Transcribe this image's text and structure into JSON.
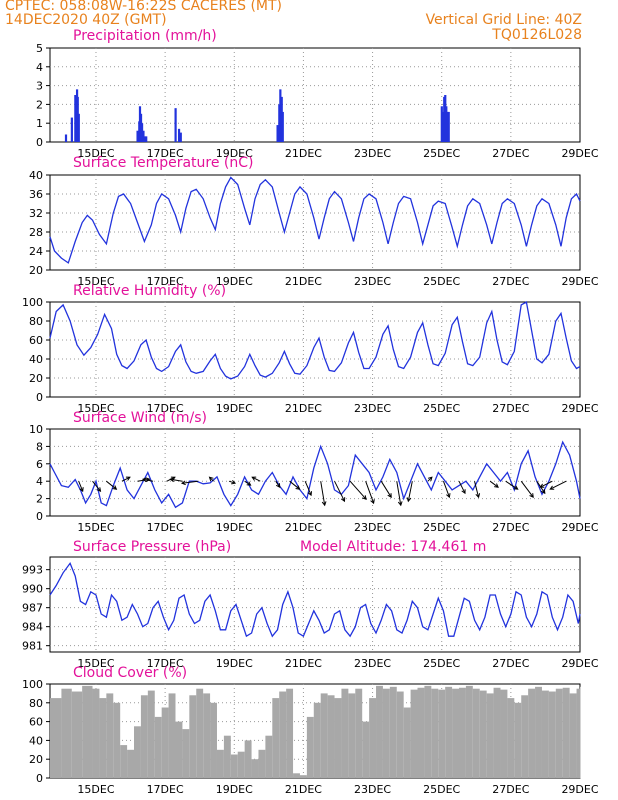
{
  "header": {
    "line1": "CPTEC:    058:08W-16:22S    CACERES (MT)",
    "line2": "14DEC2020 40Z (GMT)",
    "grid_note": "Vertical Grid Line: 40Z",
    "code": "TQ0126L028"
  },
  "x_ticks": [
    "15DEC",
    "17DEC",
    "19DEC",
    "21DEC",
    "23DEC",
    "25DEC",
    "27DEC",
    "29DEC"
  ],
  "model_altitude": "Model Altitude:  174.461  m",
  "colors": {
    "line": "#2233dd",
    "bars": "#2233dd",
    "cloud": "#a8a8a8",
    "title": "#e3129a",
    "header": "#e8821e"
  },
  "chart_data": [
    {
      "id": "precip",
      "type": "bar",
      "title": "Precipitation  (mm/h)",
      "ylim": [
        0,
        5
      ],
      "yticks": [
        "0",
        "1",
        "2",
        "3",
        "4",
        "5"
      ],
      "x": [
        14.13,
        14.3,
        14.4,
        14.45,
        14.47,
        14.5,
        16.2,
        16.25,
        16.27,
        16.3,
        16.33,
        16.37,
        16.4,
        16.45,
        17.3,
        17.4,
        17.45,
        20.25,
        20.3,
        20.33,
        20.37,
        20.4,
        25.0,
        25.03,
        25.07,
        25.1,
        25.13,
        25.17,
        25.2
      ],
      "values": [
        0.4,
        1.3,
        2.5,
        2.8,
        2.4,
        1.5,
        0.6,
        1.1,
        1.9,
        1.5,
        1.0,
        0.6,
        0.3,
        0.3,
        1.8,
        0.7,
        0.5,
        0.9,
        2.0,
        2.8,
        2.4,
        1.6,
        1.9,
        1.6,
        2.4,
        2.5,
        1.9,
        1.6,
        1.6
      ]
    },
    {
      "id": "temp",
      "type": "line",
      "title": "Surface Temperature  (nC)",
      "ylim": [
        20,
        40
      ],
      "yticks": [
        "20",
        "24",
        "28",
        "32",
        "36",
        "40"
      ],
      "x": [
        13.67,
        13.8,
        14.0,
        14.2,
        14.4,
        14.6,
        14.75,
        14.9,
        15.1,
        15.3,
        15.5,
        15.65,
        15.8,
        16.0,
        16.2,
        16.4,
        16.6,
        16.75,
        16.9,
        17.1,
        17.3,
        17.45,
        17.6,
        17.75,
        17.9,
        18.1,
        18.3,
        18.45,
        18.6,
        18.75,
        18.9,
        19.1,
        19.3,
        19.45,
        19.6,
        19.75,
        19.9,
        20.1,
        20.3,
        20.45,
        20.6,
        20.75,
        20.9,
        21.1,
        21.3,
        21.45,
        21.6,
        21.75,
        21.9,
        22.1,
        22.3,
        22.45,
        22.6,
        22.75,
        22.9,
        23.1,
        23.3,
        23.45,
        23.6,
        23.75,
        23.9,
        24.1,
        24.3,
        24.45,
        24.6,
        24.75,
        24.9,
        25.1,
        25.3,
        25.45,
        25.6,
        25.75,
        25.9,
        26.1,
        26.3,
        26.45,
        26.6,
        26.75,
        26.9,
        27.1,
        27.3,
        27.45,
        27.6,
        27.75,
        27.9,
        28.1,
        28.3,
        28.45,
        28.6,
        28.75,
        28.9,
        29.0
      ],
      "values": [
        27,
        24,
        22.5,
        21.5,
        26,
        30,
        31.5,
        30.5,
        27.5,
        25.5,
        32,
        35.5,
        36,
        34,
        30,
        26,
        29.5,
        34,
        36,
        35,
        31.5,
        28,
        33,
        36.5,
        37,
        35,
        31,
        28.5,
        34,
        37.5,
        39.5,
        38,
        33,
        29.5,
        35,
        38,
        39,
        37.5,
        32,
        28,
        32,
        36,
        37.5,
        36,
        31,
        26.5,
        31,
        35,
        36.5,
        35,
        30,
        26,
        31,
        35,
        36,
        35,
        30,
        25.5,
        30,
        34,
        35.5,
        35,
        30,
        25.5,
        29.5,
        33.5,
        34.5,
        34,
        29,
        25,
        29.5,
        33.5,
        35,
        34,
        29.5,
        25.5,
        30,
        34,
        35,
        34,
        29.5,
        25,
        29.5,
        33.5,
        35,
        34,
        29.5,
        25,
        31,
        35,
        36,
        34.5
      ]
    },
    {
      "id": "rh",
      "type": "line",
      "title": "Relative Humidity  (%)",
      "ylim": [
        0,
        100
      ],
      "yticks": [
        "0",
        "20",
        "40",
        "60",
        "80",
        "100"
      ],
      "x": [
        13.67,
        13.85,
        14.05,
        14.25,
        14.45,
        14.65,
        14.85,
        15.05,
        15.25,
        15.45,
        15.6,
        15.75,
        15.9,
        16.1,
        16.3,
        16.45,
        16.6,
        16.75,
        16.9,
        17.1,
        17.3,
        17.45,
        17.6,
        17.75,
        17.9,
        18.1,
        18.3,
        18.45,
        18.6,
        18.75,
        18.9,
        19.1,
        19.3,
        19.45,
        19.6,
        19.75,
        19.9,
        20.1,
        20.3,
        20.45,
        20.6,
        20.75,
        20.9,
        21.1,
        21.3,
        21.45,
        21.6,
        21.75,
        21.9,
        22.1,
        22.3,
        22.45,
        22.6,
        22.75,
        22.9,
        23.1,
        23.3,
        23.45,
        23.6,
        23.75,
        23.9,
        24.1,
        24.3,
        24.45,
        24.6,
        24.75,
        24.9,
        25.1,
        25.3,
        25.45,
        25.6,
        25.75,
        25.9,
        26.1,
        26.3,
        26.45,
        26.6,
        26.75,
        26.9,
        27.1,
        27.3,
        27.45,
        27.6,
        27.75,
        27.9,
        28.1,
        28.3,
        28.45,
        28.6,
        28.75,
        28.9,
        29.0
      ],
      "values": [
        62,
        90,
        97,
        80,
        55,
        44,
        52,
        66,
        87,
        72,
        45,
        33,
        30,
        38,
        55,
        60,
        42,
        30,
        27,
        32,
        48,
        55,
        37,
        27,
        25,
        27,
        38,
        45,
        30,
        22,
        19,
        22,
        32,
        45,
        33,
        23,
        21,
        25,
        36,
        48,
        35,
        25,
        24,
        33,
        52,
        62,
        42,
        28,
        27,
        36,
        57,
        68,
        47,
        30,
        30,
        42,
        66,
        75,
        50,
        32,
        30,
        42,
        68,
        78,
        55,
        35,
        33,
        46,
        76,
        84,
        58,
        35,
        33,
        42,
        78,
        90,
        60,
        37,
        34,
        48,
        97,
        100,
        70,
        40,
        36,
        45,
        80,
        88,
        62,
        38,
        30,
        32
      ]
    },
    {
      "id": "wind",
      "type": "line",
      "title": "Surface Wind  (m/s)",
      "ylim": [
        0,
        10
      ],
      "yticks": [
        "0",
        "2",
        "4",
        "6",
        "8",
        "10"
      ],
      "x": [
        13.67,
        13.8,
        14.0,
        14.2,
        14.4,
        14.55,
        14.7,
        14.85,
        15.0,
        15.15,
        15.3,
        15.5,
        15.7,
        15.9,
        16.1,
        16.3,
        16.5,
        16.7,
        16.9,
        17.1,
        17.3,
        17.5,
        17.7,
        17.9,
        18.1,
        18.3,
        18.5,
        18.7,
        18.9,
        19.1,
        19.3,
        19.5,
        19.7,
        19.9,
        20.1,
        20.3,
        20.5,
        20.7,
        20.9,
        21.1,
        21.3,
        21.5,
        21.7,
        21.9,
        22.1,
        22.3,
        22.5,
        22.7,
        22.9,
        23.1,
        23.3,
        23.5,
        23.7,
        23.9,
        24.1,
        24.3,
        24.5,
        24.7,
        24.9,
        25.1,
        25.3,
        25.5,
        25.7,
        25.9,
        26.1,
        26.3,
        26.5,
        26.7,
        26.9,
        27.1,
        27.3,
        27.5,
        27.7,
        27.9,
        28.1,
        28.3,
        28.5,
        28.7,
        28.9,
        29.0
      ],
      "values": [
        6,
        5,
        3.5,
        3.3,
        4.2,
        3,
        1.5,
        2.5,
        4,
        1.5,
        1.2,
        3.5,
        5.5,
        3,
        2,
        3.5,
        5,
        3,
        1.5,
        2.5,
        1,
        1.5,
        4,
        4,
        3.7,
        3.8,
        4.5,
        2.5,
        1.2,
        2.5,
        4.5,
        3,
        2.5,
        4,
        5,
        3.5,
        2.5,
        4.5,
        3,
        2,
        5.5,
        8,
        6,
        3,
        2.5,
        3.5,
        7,
        6,
        5,
        3,
        4.5,
        6.5,
        5,
        2,
        4,
        6,
        4.5,
        3,
        5,
        4,
        3,
        3.5,
        4,
        3,
        4.5,
        6,
        5,
        4,
        5,
        3,
        6,
        7.5,
        4.5,
        2.5,
        4,
        6,
        8.5,
        7,
        4,
        2
      ]
    },
    {
      "id": "pressure",
      "type": "line",
      "title": "Surface Pressure  (hPa)",
      "ylim": [
        980,
        995
      ],
      "yticks": [
        "981",
        "984",
        "987",
        "990",
        "993"
      ],
      "x": [
        13.67,
        13.85,
        14.05,
        14.25,
        14.4,
        14.55,
        14.7,
        14.85,
        15.0,
        15.15,
        15.3,
        15.45,
        15.6,
        15.75,
        15.9,
        16.05,
        16.2,
        16.35,
        16.5,
        16.65,
        16.8,
        16.95,
        17.1,
        17.25,
        17.4,
        17.55,
        17.7,
        17.85,
        18.0,
        18.15,
        18.3,
        18.45,
        18.6,
        18.75,
        18.9,
        19.05,
        19.2,
        19.35,
        19.5,
        19.65,
        19.8,
        19.95,
        20.1,
        20.25,
        20.4,
        20.55,
        20.7,
        20.85,
        21.0,
        21.15,
        21.3,
        21.45,
        21.6,
        21.75,
        21.9,
        22.05,
        22.2,
        22.35,
        22.5,
        22.65,
        22.8,
        22.95,
        23.1,
        23.25,
        23.4,
        23.55,
        23.7,
        23.85,
        24.0,
        24.15,
        24.3,
        24.45,
        24.6,
        24.75,
        24.9,
        25.05,
        25.2,
        25.35,
        25.5,
        25.65,
        25.8,
        25.95,
        26.1,
        26.25,
        26.4,
        26.55,
        26.7,
        26.85,
        27.0,
        27.15,
        27.3,
        27.45,
        27.6,
        27.75,
        27.9,
        28.05,
        28.2,
        28.35,
        28.5,
        28.65,
        28.8,
        28.95,
        29.0
      ],
      "values": [
        989,
        990.5,
        992.5,
        994,
        992,
        988,
        987.5,
        989.5,
        989,
        986,
        985.5,
        989,
        988,
        985,
        985.5,
        987.5,
        986,
        984,
        984.5,
        987,
        988,
        985.5,
        983.5,
        985,
        988.5,
        989,
        986,
        984.5,
        985,
        988,
        989,
        986.5,
        983.5,
        983.5,
        986.5,
        987.5,
        985,
        982.5,
        983,
        986,
        987,
        984.5,
        982.5,
        983.5,
        987.5,
        989.5,
        987,
        983,
        982.5,
        984.5,
        986.5,
        985,
        983,
        983.5,
        986,
        986.5,
        983.5,
        982.5,
        984,
        987,
        987.5,
        984.5,
        983,
        985,
        987.5,
        986.5,
        983.5,
        983,
        985,
        988,
        987,
        984,
        983.5,
        986,
        988.5,
        986.5,
        982.5,
        982.5,
        985.5,
        988.5,
        988,
        985,
        983.5,
        985.5,
        989,
        989,
        986,
        984,
        986,
        989.5,
        989,
        985.5,
        984,
        986,
        989.5,
        989,
        985.5,
        983.5,
        985.5,
        989,
        988,
        984.5,
        986
      ]
    },
    {
      "id": "cloud",
      "type": "area",
      "title": "Cloud Cover  (%)",
      "ylim": [
        0,
        100
      ],
      "yticks": [
        "0",
        "20",
        "40",
        "60",
        "80",
        "100"
      ],
      "x": [
        13.67,
        14.0,
        14.3,
        14.6,
        14.9,
        15.1,
        15.3,
        15.5,
        15.7,
        15.9,
        16.1,
        16.3,
        16.5,
        16.7,
        16.9,
        17.1,
        17.3,
        17.5,
        17.7,
        17.9,
        18.1,
        18.3,
        18.5,
        18.7,
        18.9,
        19.1,
        19.3,
        19.5,
        19.7,
        19.9,
        20.1,
        20.3,
        20.5,
        20.7,
        20.9,
        21.1,
        21.3,
        21.5,
        21.7,
        21.9,
        22.1,
        22.3,
        22.5,
        22.7,
        22.9,
        23.1,
        23.3,
        23.5,
        23.7,
        23.9,
        24.1,
        24.3,
        24.5,
        24.7,
        24.9,
        25.1,
        25.3,
        25.5,
        25.7,
        25.9,
        26.1,
        26.3,
        26.5,
        26.7,
        26.9,
        27.1,
        27.3,
        27.5,
        27.7,
        27.9,
        28.1,
        28.3,
        28.5,
        28.7,
        28.9,
        29.0
      ],
      "values": [
        85,
        95,
        92,
        98,
        95,
        85,
        90,
        80,
        35,
        30,
        55,
        88,
        93,
        65,
        75,
        90,
        60,
        52,
        88,
        95,
        90,
        80,
        30,
        45,
        25,
        28,
        40,
        20,
        30,
        45,
        85,
        92,
        95,
        5,
        3,
        65,
        80,
        90,
        88,
        85,
        95,
        90,
        95,
        60,
        85,
        98,
        95,
        97,
        92,
        75,
        94,
        96,
        98,
        95,
        94,
        97,
        95,
        96,
        98,
        95,
        93,
        90,
        96,
        94,
        85,
        80,
        88,
        95,
        97,
        93,
        92,
        95,
        96,
        90,
        95,
        97
      ]
    }
  ],
  "wind_arrows": {
    "x": [
      14.5,
      14.9,
      15.3,
      15.75,
      16.2,
      16.65,
      17.05,
      17.5,
      17.95,
      18.4,
      18.85,
      19.3,
      19.75,
      20.2,
      20.6,
      21.05,
      21.5,
      21.9,
      22.35,
      22.8,
      23.25,
      23.7,
      24.15,
      24.6,
      25.05,
      25.5,
      25.95,
      26.4,
      26.85,
      27.3,
      27.75,
      28.2,
      28.6
    ],
    "u": [
      1,
      2,
      2.5,
      2,
      3,
      -2.5,
      2,
      -3,
      -4,
      -1,
      1.5,
      1.5,
      -2,
      1,
      2.5,
      1.5,
      1,
      2.5,
      4,
      2,
      2.5,
      1,
      -1,
      1,
      1.5,
      1.5,
      1,
      2,
      3,
      3,
      2,
      -3,
      -4
    ],
    "v": [
      -2.5,
      -2.5,
      -2,
      1,
      0.5,
      0.5,
      1,
      0.5,
      -0.5,
      1,
      -0.5,
      -1,
      1,
      -1.5,
      -2,
      -3.5,
      -6,
      -5,
      -4.5,
      -5.5,
      -4,
      -6,
      -5,
      1,
      -4,
      -3,
      -4,
      -1.5,
      -2,
      -4,
      -3,
      -1.5,
      -2
    ]
  }
}
